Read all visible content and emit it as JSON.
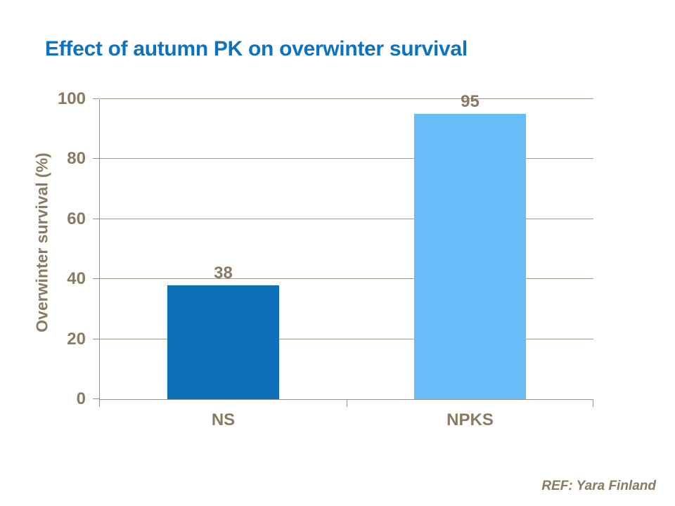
{
  "title": {
    "text": "Effect of autumn PK on overwinter survival",
    "color": "#0d72c2"
  },
  "footer": {
    "ref": "REF: Yara Finland"
  },
  "chart_data": {
    "type": "bar",
    "title": "Effect of autumn PK on overwinter survival",
    "categories": [
      "NS",
      "NPKS"
    ],
    "values": [
      38,
      95
    ],
    "data_labels": [
      "38",
      "95"
    ],
    "bar_colors": [
      "#0d6fb8",
      "#66bdf7"
    ],
    "xlabel": "",
    "ylabel": "Overwinter survival (%)",
    "ylim": [
      0,
      100
    ],
    "yticks": [
      0,
      20,
      40,
      60,
      80,
      100
    ],
    "grid": "horizontal",
    "legend": "none",
    "axis_color": "#9c9283",
    "gridline_color": "#a59b8d",
    "text_color": "#8a7a62",
    "background": "#ffffff"
  }
}
